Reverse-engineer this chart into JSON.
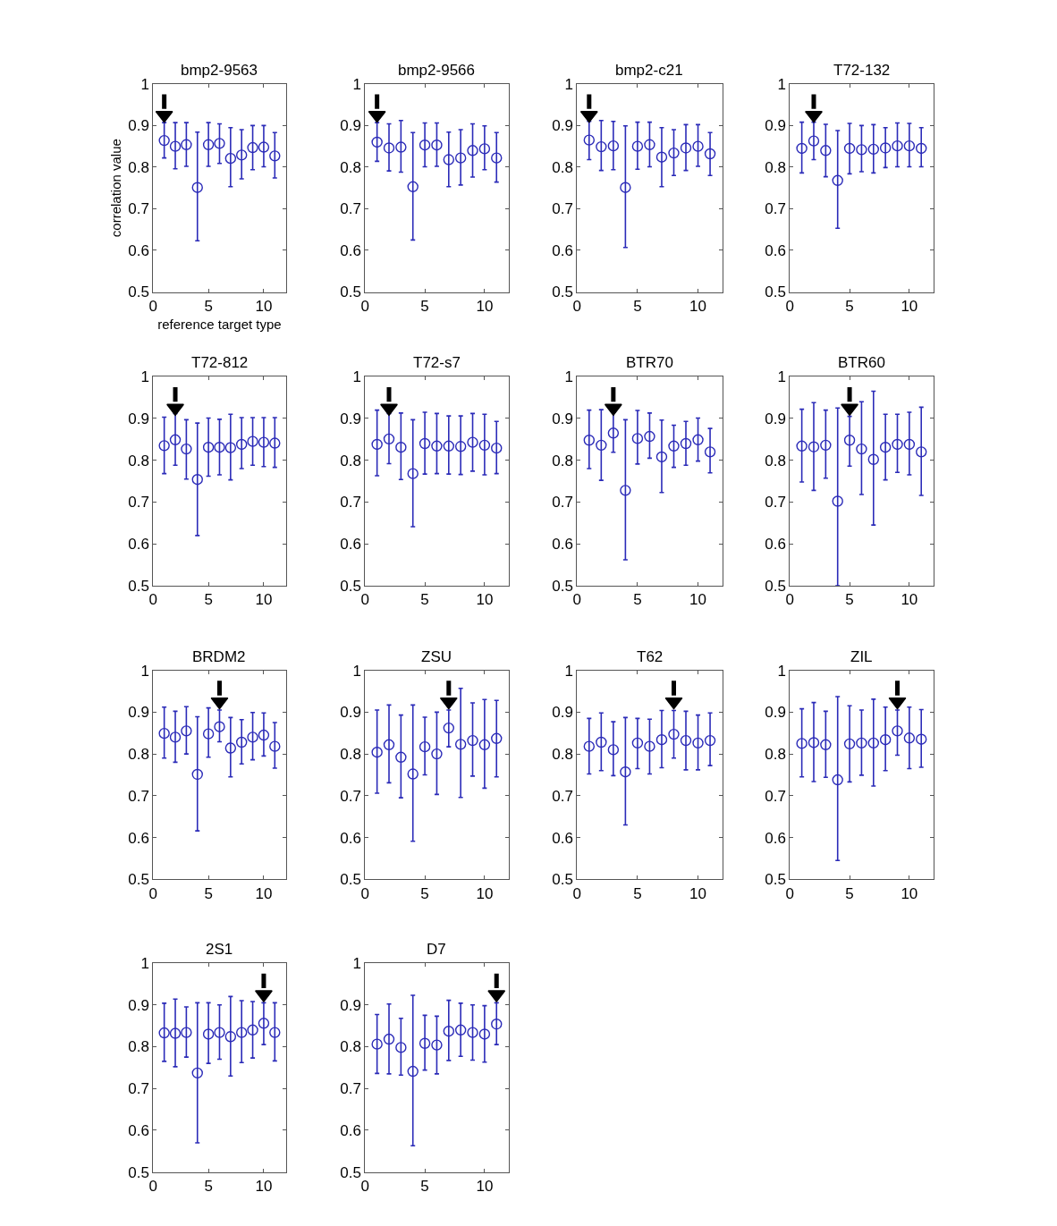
{
  "chart_data": [
    {
      "type": "scatter",
      "title": "bmp2-9563",
      "xlabel": "reference target type",
      "ylabel": "correlation value",
      "x": [
        1,
        2,
        3,
        4,
        5,
        6,
        7,
        8,
        9,
        10,
        11
      ],
      "marker": "circle",
      "xlim": [
        0,
        12
      ],
      "xticks": [
        0,
        5,
        10
      ],
      "ylim": [
        0.5,
        1
      ],
      "yticks": [
        0.5,
        0.6,
        0.7,
        0.8,
        0.9,
        1
      ],
      "series": [
        {
          "color": "#2b2bb8",
          "values": [
            0.864,
            0.85,
            0.854,
            0.751,
            0.854,
            0.857,
            0.821,
            0.829,
            0.847,
            0.848,
            0.827
          ],
          "errors": [
            [
              0.822,
              0.907
            ],
            [
              0.796,
              0.907
            ],
            [
              0.802,
              0.907
            ],
            [
              0.623,
              0.884
            ],
            [
              0.802,
              0.907
            ],
            [
              0.809,
              0.904
            ],
            [
              0.753,
              0.895
            ],
            [
              0.772,
              0.89
            ],
            [
              0.794,
              0.9
            ],
            [
              0.801,
              0.9
            ],
            [
              0.774,
              0.883
            ]
          ]
        },
        {
          "type": "line",
          "marker": "none",
          "color": "#000000",
          "x": [
            1,
            1
          ],
          "values": [
            0.975,
            0.94
          ]
        },
        {
          "type": "scatter",
          "marker": "triangle",
          "color": "#000000",
          "x": [
            1
          ],
          "values": [
            0.925
          ]
        }
      ]
    },
    {
      "type": "scatter",
      "title": "bmp2-9566",
      "x": [
        1,
        2,
        3,
        4,
        5,
        6,
        7,
        8,
        9,
        10,
        11
      ],
      "marker": "circle",
      "xlim": [
        0,
        12
      ],
      "xticks": [
        0,
        5,
        10
      ],
      "ylim": [
        0.5,
        1
      ],
      "yticks": [
        0.5,
        0.6,
        0.7,
        0.8,
        0.9,
        1
      ],
      "series": [
        {
          "color": "#2b2bb8",
          "values": [
            0.86,
            0.846,
            0.848,
            0.753,
            0.853,
            0.853,
            0.818,
            0.822,
            0.84,
            0.844,
            0.822
          ],
          "errors": [
            [
              0.814,
              0.907
            ],
            [
              0.791,
              0.904
            ],
            [
              0.788,
              0.912
            ],
            [
              0.625,
              0.883
            ],
            [
              0.801,
              0.906
            ],
            [
              0.802,
              0.906
            ],
            [
              0.753,
              0.884
            ],
            [
              0.757,
              0.89
            ],
            [
              0.776,
              0.904
            ],
            [
              0.794,
              0.899
            ],
            [
              0.764,
              0.883
            ]
          ]
        },
        {
          "type": "line",
          "marker": "none",
          "color": "#000000",
          "x": [
            1,
            1
          ],
          "values": [
            0.975,
            0.94
          ]
        },
        {
          "type": "scatter",
          "marker": "triangle",
          "color": "#000000",
          "x": [
            1
          ],
          "values": [
            0.925
          ]
        }
      ]
    },
    {
      "type": "scatter",
      "title": "bmp2-c21",
      "x": [
        1,
        2,
        3,
        4,
        5,
        6,
        7,
        8,
        9,
        10,
        11
      ],
      "marker": "circle",
      "xlim": [
        0,
        12
      ],
      "xticks": [
        0,
        5,
        10
      ],
      "ylim": [
        0.5,
        1
      ],
      "yticks": [
        0.5,
        0.6,
        0.7,
        0.8,
        0.9,
        1
      ],
      "series": [
        {
          "color": "#2b2bb8",
          "values": [
            0.865,
            0.849,
            0.851,
            0.751,
            0.85,
            0.854,
            0.824,
            0.834,
            0.846,
            0.85,
            0.832
          ],
          "errors": [
            [
              0.818,
              0.91
            ],
            [
              0.792,
              0.912
            ],
            [
              0.794,
              0.91
            ],
            [
              0.607,
              0.899
            ],
            [
              0.795,
              0.908
            ],
            [
              0.801,
              0.908
            ],
            [
              0.753,
              0.895
            ],
            [
              0.78,
              0.89
            ],
            [
              0.792,
              0.902
            ],
            [
              0.802,
              0.902
            ],
            [
              0.78,
              0.883
            ]
          ]
        },
        {
          "type": "line",
          "marker": "none",
          "color": "#000000",
          "x": [
            1,
            1
          ],
          "values": [
            0.975,
            0.94
          ]
        },
        {
          "type": "scatter",
          "marker": "triangle",
          "color": "#000000",
          "x": [
            1
          ],
          "values": [
            0.925
          ]
        }
      ]
    },
    {
      "type": "scatter",
      "title": "T72-132",
      "x": [
        1,
        2,
        3,
        4,
        5,
        6,
        7,
        8,
        9,
        10,
        11
      ],
      "marker": "circle",
      "xlim": [
        0,
        12
      ],
      "xticks": [
        0,
        5,
        10
      ],
      "ylim": [
        0.5,
        1
      ],
      "yticks": [
        0.5,
        0.6,
        0.7,
        0.8,
        0.9,
        1
      ],
      "series": [
        {
          "color": "#2b2bb8",
          "values": [
            0.845,
            0.863,
            0.84,
            0.768,
            0.845,
            0.842,
            0.843,
            0.846,
            0.851,
            0.851,
            0.845
          ],
          "errors": [
            [
              0.786,
              0.908
            ],
            [
              0.818,
              0.908
            ],
            [
              0.777,
              0.903
            ],
            [
              0.653,
              0.888
            ],
            [
              0.784,
              0.905
            ],
            [
              0.789,
              0.9
            ],
            [
              0.786,
              0.902
            ],
            [
              0.799,
              0.895
            ],
            [
              0.801,
              0.906
            ],
            [
              0.801,
              0.905
            ],
            [
              0.801,
              0.895
            ]
          ]
        },
        {
          "type": "line",
          "marker": "none",
          "color": "#000000",
          "x": [
            2,
            2
          ],
          "values": [
            0.975,
            0.94
          ]
        },
        {
          "type": "scatter",
          "marker": "triangle",
          "color": "#000000",
          "x": [
            2
          ],
          "values": [
            0.925
          ]
        }
      ]
    },
    {
      "type": "scatter",
      "title": "T72-812",
      "x": [
        1,
        2,
        3,
        4,
        5,
        6,
        7,
        8,
        9,
        10,
        11
      ],
      "marker": "circle",
      "xlim": [
        0,
        12
      ],
      "xticks": [
        0,
        5,
        10
      ],
      "ylim": [
        0.5,
        1
      ],
      "yticks": [
        0.5,
        0.6,
        0.7,
        0.8,
        0.9,
        1
      ],
      "series": [
        {
          "color": "#2b2bb8",
          "values": [
            0.835,
            0.849,
            0.827,
            0.754,
            0.831,
            0.831,
            0.83,
            0.838,
            0.845,
            0.843,
            0.841
          ],
          "errors": [
            [
              0.768,
              0.903
            ],
            [
              0.788,
              0.912
            ],
            [
              0.755,
              0.897
            ],
            [
              0.62,
              0.889
            ],
            [
              0.762,
              0.901
            ],
            [
              0.765,
              0.898
            ],
            [
              0.753,
              0.91
            ],
            [
              0.78,
              0.902
            ],
            [
              0.788,
              0.902
            ],
            [
              0.785,
              0.902
            ],
            [
              0.783,
              0.902
            ]
          ]
        },
        {
          "type": "line",
          "marker": "none",
          "color": "#000000",
          "x": [
            2,
            2
          ],
          "values": [
            0.975,
            0.94
          ]
        },
        {
          "type": "scatter",
          "marker": "triangle",
          "color": "#000000",
          "x": [
            2
          ],
          "values": [
            0.925
          ]
        }
      ]
    },
    {
      "type": "scatter",
      "title": "T72-s7",
      "x": [
        1,
        2,
        3,
        4,
        5,
        6,
        7,
        8,
        9,
        10,
        11
      ],
      "marker": "circle",
      "xlim": [
        0,
        12
      ],
      "xticks": [
        0,
        5,
        10
      ],
      "ylim": [
        0.5,
        1
      ],
      "yticks": [
        0.5,
        0.6,
        0.7,
        0.8,
        0.9,
        1
      ],
      "series": [
        {
          "color": "#2b2bb8",
          "values": [
            0.838,
            0.851,
            0.831,
            0.768,
            0.84,
            0.834,
            0.834,
            0.833,
            0.843,
            0.836,
            0.829
          ],
          "errors": [
            [
              0.763,
              0.92
            ],
            [
              0.792,
              0.912
            ],
            [
              0.754,
              0.913
            ],
            [
              0.641,
              0.897
            ],
            [
              0.767,
              0.915
            ],
            [
              0.768,
              0.912
            ],
            [
              0.767,
              0.906
            ],
            [
              0.766,
              0.906
            ],
            [
              0.774,
              0.912
            ],
            [
              0.765,
              0.91
            ],
            [
              0.768,
              0.893
            ]
          ]
        },
        {
          "type": "line",
          "marker": "none",
          "color": "#000000",
          "x": [
            2,
            2
          ],
          "values": [
            0.975,
            0.94
          ]
        },
        {
          "type": "scatter",
          "marker": "triangle",
          "color": "#000000",
          "x": [
            2
          ],
          "values": [
            0.925
          ]
        }
      ]
    },
    {
      "type": "scatter",
      "title": "BTR70",
      "x": [
        1,
        2,
        3,
        4,
        5,
        6,
        7,
        8,
        9,
        10,
        11
      ],
      "marker": "circle",
      "xlim": [
        0,
        12
      ],
      "xticks": [
        0,
        5,
        10
      ],
      "ylim": [
        0.5,
        1
      ],
      "yticks": [
        0.5,
        0.6,
        0.7,
        0.8,
        0.9,
        1
      ],
      "series": [
        {
          "color": "#2b2bb8",
          "values": [
            0.848,
            0.836,
            0.865,
            0.728,
            0.852,
            0.857,
            0.808,
            0.834,
            0.84,
            0.849,
            0.82
          ],
          "errors": [
            [
              0.78,
              0.92
            ],
            [
              0.752,
              0.921
            ],
            [
              0.819,
              0.915
            ],
            [
              0.562,
              0.897
            ],
            [
              0.791,
              0.919
            ],
            [
              0.805,
              0.913
            ],
            [
              0.723,
              0.896
            ],
            [
              0.783,
              0.884
            ],
            [
              0.788,
              0.893
            ],
            [
              0.798,
              0.901
            ],
            [
              0.77,
              0.876
            ]
          ]
        },
        {
          "type": "line",
          "marker": "none",
          "color": "#000000",
          "x": [
            3,
            3
          ],
          "values": [
            0.975,
            0.94
          ]
        },
        {
          "type": "scatter",
          "marker": "triangle",
          "color": "#000000",
          "x": [
            3
          ],
          "values": [
            0.925
          ]
        }
      ]
    },
    {
      "type": "scatter",
      "title": "BTR60",
      "x": [
        1,
        2,
        3,
        4,
        5,
        6,
        7,
        8,
        9,
        10,
        11
      ],
      "marker": "circle",
      "xlim": [
        0,
        12
      ],
      "xticks": [
        0,
        5,
        10
      ],
      "ylim": [
        0.5,
        1
      ],
      "yticks": [
        0.5,
        0.6,
        0.7,
        0.8,
        0.9,
        1
      ],
      "series": [
        {
          "color": "#2b2bb8",
          "values": [
            0.834,
            0.832,
            0.836,
            0.702,
            0.848,
            0.827,
            0.802,
            0.831,
            0.838,
            0.838,
            0.82
          ],
          "errors": [
            [
              0.748,
              0.922
            ],
            [
              0.728,
              0.938
            ],
            [
              0.757,
              0.92
            ],
            [
              0.5,
              0.925
            ],
            [
              0.786,
              0.905
            ],
            [
              0.718,
              0.94
            ],
            [
              0.645,
              0.965
            ],
            [
              0.753,
              0.91
            ],
            [
              0.771,
              0.91
            ],
            [
              0.765,
              0.915
            ],
            [
              0.716,
              0.927
            ]
          ]
        },
        {
          "type": "line",
          "marker": "none",
          "color": "#000000",
          "x": [
            5,
            5
          ],
          "values": [
            0.975,
            0.94
          ]
        },
        {
          "type": "scatter",
          "marker": "triangle",
          "color": "#000000",
          "x": [
            5
          ],
          "values": [
            0.925
          ]
        }
      ]
    },
    {
      "type": "scatter",
      "title": "BRDM2",
      "x": [
        1,
        2,
        3,
        4,
        5,
        6,
        7,
        8,
        9,
        10,
        11
      ],
      "marker": "circle",
      "xlim": [
        0,
        12
      ],
      "xticks": [
        0,
        5,
        10
      ],
      "ylim": [
        0.5,
        1
      ],
      "yticks": [
        0.5,
        0.6,
        0.7,
        0.8,
        0.9,
        1
      ],
      "series": [
        {
          "color": "#2b2bb8",
          "values": [
            0.849,
            0.84,
            0.855,
            0.751,
            0.848,
            0.865,
            0.814,
            0.828,
            0.84,
            0.845,
            0.818
          ],
          "errors": [
            [
              0.79,
              0.912
            ],
            [
              0.78,
              0.902
            ],
            [
              0.8,
              0.913
            ],
            [
              0.616,
              0.889
            ],
            [
              0.792,
              0.91
            ],
            [
              0.829,
              0.905
            ],
            [
              0.745,
              0.887
            ],
            [
              0.776,
              0.882
            ],
            [
              0.786,
              0.899
            ],
            [
              0.795,
              0.898
            ],
            [
              0.766,
              0.875
            ]
          ]
        },
        {
          "type": "line",
          "marker": "none",
          "color": "#000000",
          "x": [
            6,
            6
          ],
          "values": [
            0.975,
            0.94
          ]
        },
        {
          "type": "scatter",
          "marker": "triangle",
          "color": "#000000",
          "x": [
            6
          ],
          "values": [
            0.925
          ]
        }
      ]
    },
    {
      "type": "scatter",
      "title": "ZSU",
      "x": [
        1,
        2,
        3,
        4,
        5,
        6,
        7,
        8,
        9,
        10,
        11
      ],
      "marker": "circle",
      "xlim": [
        0,
        12
      ],
      "xticks": [
        0,
        5,
        10
      ],
      "ylim": [
        0.5,
        1
      ],
      "yticks": [
        0.5,
        0.6,
        0.7,
        0.8,
        0.9,
        1
      ],
      "series": [
        {
          "color": "#2b2bb8",
          "values": [
            0.804,
            0.822,
            0.792,
            0.752,
            0.817,
            0.8,
            0.862,
            0.823,
            0.832,
            0.822,
            0.837
          ],
          "errors": [
            [
              0.706,
              0.905
            ],
            [
              0.731,
              0.917
            ],
            [
              0.695,
              0.893
            ],
            [
              0.591,
              0.917
            ],
            [
              0.75,
              0.888
            ],
            [
              0.703,
              0.9
            ],
            [
              0.817,
              0.905
            ],
            [
              0.696,
              0.957
            ],
            [
              0.747,
              0.922
            ],
            [
              0.718,
              0.93
            ],
            [
              0.745,
              0.928
            ]
          ]
        },
        {
          "type": "line",
          "marker": "none",
          "color": "#000000",
          "x": [
            7,
            7
          ],
          "values": [
            0.975,
            0.94
          ]
        },
        {
          "type": "scatter",
          "marker": "triangle",
          "color": "#000000",
          "x": [
            7
          ],
          "values": [
            0.925
          ]
        }
      ]
    },
    {
      "type": "scatter",
      "title": "T62",
      "x": [
        1,
        2,
        3,
        4,
        5,
        6,
        7,
        8,
        9,
        10,
        11
      ],
      "marker": "circle",
      "xlim": [
        0,
        12
      ],
      "xticks": [
        0,
        5,
        10
      ],
      "ylim": [
        0.5,
        1
      ],
      "yticks": [
        0.5,
        0.6,
        0.7,
        0.8,
        0.9,
        1
      ],
      "series": [
        {
          "color": "#2b2bb8",
          "values": [
            0.818,
            0.828,
            0.81,
            0.757,
            0.826,
            0.818,
            0.834,
            0.847,
            0.832,
            0.826,
            0.832
          ],
          "errors": [
            [
              0.752,
              0.885
            ],
            [
              0.76,
              0.898
            ],
            [
              0.748,
              0.877
            ],
            [
              0.63,
              0.887
            ],
            [
              0.765,
              0.885
            ],
            [
              0.752,
              0.883
            ],
            [
              0.767,
              0.904
            ],
            [
              0.79,
              0.904
            ],
            [
              0.762,
              0.902
            ],
            [
              0.762,
              0.893
            ],
            [
              0.772,
              0.898
            ]
          ]
        },
        {
          "type": "line",
          "marker": "none",
          "color": "#000000",
          "x": [
            8,
            8
          ],
          "values": [
            0.975,
            0.94
          ]
        },
        {
          "type": "scatter",
          "marker": "triangle",
          "color": "#000000",
          "x": [
            8
          ],
          "values": [
            0.925
          ]
        }
      ]
    },
    {
      "type": "scatter",
      "title": "ZIL",
      "x": [
        1,
        2,
        3,
        4,
        5,
        6,
        7,
        8,
        9,
        10,
        11
      ],
      "marker": "circle",
      "xlim": [
        0,
        12
      ],
      "xticks": [
        0,
        5,
        10
      ],
      "ylim": [
        0.5,
        1
      ],
      "yticks": [
        0.5,
        0.6,
        0.7,
        0.8,
        0.9,
        1
      ],
      "series": [
        {
          "color": "#2b2bb8",
          "values": [
            0.825,
            0.827,
            0.822,
            0.738,
            0.824,
            0.826,
            0.826,
            0.834,
            0.855,
            0.838,
            0.835
          ],
          "errors": [
            [
              0.745,
              0.908
            ],
            [
              0.734,
              0.923
            ],
            [
              0.744,
              0.902
            ],
            [
              0.545,
              0.937
            ],
            [
              0.733,
              0.915
            ],
            [
              0.749,
              0.905
            ],
            [
              0.723,
              0.931
            ],
            [
              0.76,
              0.912
            ],
            [
              0.797,
              0.905
            ],
            [
              0.765,
              0.912
            ],
            [
              0.768,
              0.906
            ]
          ]
        },
        {
          "type": "line",
          "marker": "none",
          "color": "#000000",
          "x": [
            9,
            9
          ],
          "values": [
            0.975,
            0.94
          ]
        },
        {
          "type": "scatter",
          "marker": "triangle",
          "color": "#000000",
          "x": [
            9
          ],
          "values": [
            0.925
          ]
        }
      ]
    },
    {
      "type": "scatter",
      "title": "2S1",
      "x": [
        1,
        2,
        3,
        4,
        5,
        6,
        7,
        8,
        9,
        10,
        11
      ],
      "marker": "circle",
      "xlim": [
        0,
        12
      ],
      "xticks": [
        0,
        5,
        10
      ],
      "ylim": [
        0.5,
        1
      ],
      "yticks": [
        0.5,
        0.6,
        0.7,
        0.8,
        0.9,
        1
      ],
      "series": [
        {
          "color": "#2b2bb8",
          "values": [
            0.833,
            0.832,
            0.834,
            0.737,
            0.83,
            0.834,
            0.824,
            0.834,
            0.84,
            0.856,
            0.834
          ],
          "errors": [
            [
              0.765,
              0.904
            ],
            [
              0.752,
              0.914
            ],
            [
              0.775,
              0.895
            ],
            [
              0.57,
              0.905
            ],
            [
              0.76,
              0.905
            ],
            [
              0.77,
              0.9
            ],
            [
              0.73,
              0.92
            ],
            [
              0.762,
              0.91
            ],
            [
              0.773,
              0.908
            ],
            [
              0.805,
              0.905
            ],
            [
              0.766,
              0.905
            ]
          ]
        },
        {
          "type": "line",
          "marker": "none",
          "color": "#000000",
          "x": [
            10,
            10
          ],
          "values": [
            0.975,
            0.94
          ]
        },
        {
          "type": "scatter",
          "marker": "triangle",
          "color": "#000000",
          "x": [
            10
          ],
          "values": [
            0.925
          ]
        }
      ]
    },
    {
      "type": "scatter",
      "title": "D7",
      "x": [
        1,
        2,
        3,
        4,
        5,
        6,
        7,
        8,
        9,
        10,
        11
      ],
      "marker": "circle",
      "xlim": [
        0,
        12
      ],
      "xticks": [
        0,
        5,
        10
      ],
      "ylim": [
        0.5,
        1
      ],
      "yticks": [
        0.5,
        0.6,
        0.7,
        0.8,
        0.9,
        1
      ],
      "series": [
        {
          "color": "#2b2bb8",
          "values": [
            0.806,
            0.818,
            0.798,
            0.741,
            0.808,
            0.804,
            0.837,
            0.84,
            0.834,
            0.83,
            0.854
          ],
          "errors": [
            [
              0.736,
              0.877
            ],
            [
              0.735,
              0.902
            ],
            [
              0.732,
              0.868
            ],
            [
              0.563,
              0.923
            ],
            [
              0.744,
              0.875
            ],
            [
              0.735,
              0.873
            ],
            [
              0.767,
              0.911
            ],
            [
              0.777,
              0.904
            ],
            [
              0.768,
              0.9
            ],
            [
              0.763,
              0.898
            ],
            [
              0.805,
              0.905
            ]
          ]
        },
        {
          "type": "line",
          "marker": "none",
          "color": "#000000",
          "x": [
            11,
            11
          ],
          "values": [
            0.975,
            0.94
          ]
        },
        {
          "type": "scatter",
          "marker": "triangle",
          "color": "#000000",
          "x": [
            11
          ],
          "values": [
            0.925
          ]
        }
      ]
    }
  ]
}
